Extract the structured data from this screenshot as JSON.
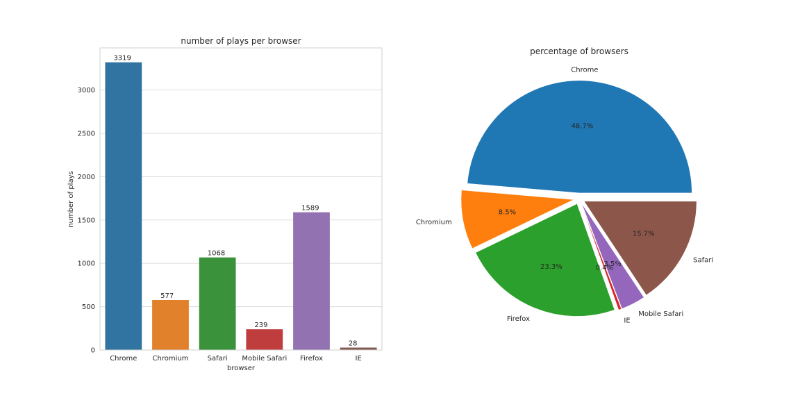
{
  "chart_data": [
    {
      "type": "bar",
      "title": "number of plays per browser",
      "xlabel": "browser",
      "ylabel": "number of plays",
      "categories": [
        "Chrome",
        "Chromium",
        "Safari",
        "Mobile Safari",
        "Firefox",
        "IE"
      ],
      "values": [
        3319,
        577,
        1068,
        239,
        1589,
        28
      ],
      "data_labels": [
        "3319",
        "577",
        "1068",
        "239",
        "1589",
        "28"
      ],
      "colors": [
        "#3274a1",
        "#e1812c",
        "#3a923a",
        "#c03d3e",
        "#9372b2",
        "#845b53"
      ],
      "yticks": [
        0,
        500,
        1000,
        1500,
        2000,
        2500,
        3000
      ],
      "ylim": [
        0,
        3485
      ],
      "grid": true,
      "legend": "none"
    },
    {
      "type": "pie",
      "title": "percentage of browsers",
      "labels": [
        "Chrome",
        "Chromium",
        "Firefox",
        "IE",
        "Mobile Safari",
        "Safari"
      ],
      "values": [
        48.7,
        8.5,
        23.3,
        0.4,
        3.5,
        15.7
      ],
      "pct_labels": [
        "48.7%",
        "8.5%",
        "23.3%",
        "0.4%",
        "3.5%",
        "15.7%"
      ],
      "colors": [
        "#1f77b4",
        "#ff7f0e",
        "#2ca02c",
        "#d62728",
        "#9467bd",
        "#8c564b"
      ],
      "legend": "none"
    }
  ]
}
